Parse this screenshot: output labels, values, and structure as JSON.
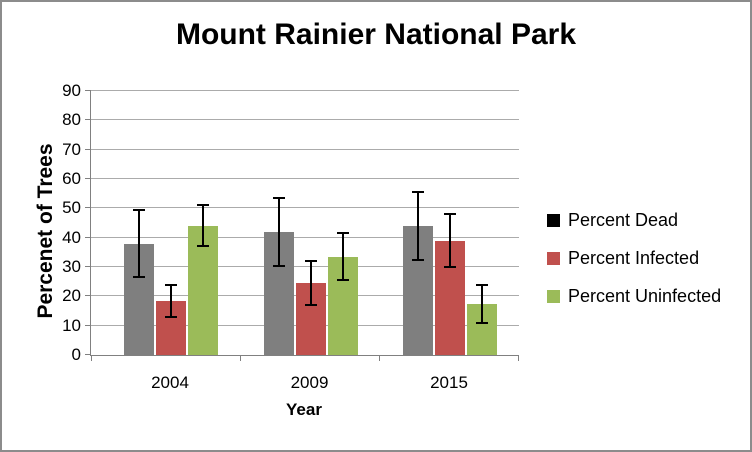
{
  "chart_data": {
    "type": "bar",
    "title": "Mount Rainier National Park",
    "xlabel": "Year",
    "ylabel": "Percenet of Trees",
    "categories": [
      "2004",
      "2009",
      "2015"
    ],
    "series": [
      {
        "name": "Percent Dead",
        "bar_color": "#7F7F7F",
        "legend_color": "#000000",
        "values": [
          38,
          42,
          44
        ],
        "error_plus_minus": [
          11.5,
          11.5,
          11.5
        ]
      },
      {
        "name": "Percent Infected",
        "bar_color": "#C0504D",
        "legend_color": "#C0504D",
        "values": [
          18.5,
          24.5,
          39
        ],
        "error_plus_minus": [
          5.5,
          7.5,
          9
        ]
      },
      {
        "name": "Percent Uninfected",
        "bar_color": "#9BBB59",
        "legend_color": "#9BBB59",
        "values": [
          44,
          33.5,
          17.5
        ],
        "error_plus_minus": [
          7,
          8,
          6.5
        ]
      }
    ],
    "ylim": [
      0,
      90
    ],
    "yticks": [
      0,
      10,
      20,
      30,
      40,
      50,
      60,
      70,
      80,
      90
    ],
    "grid": true,
    "error_bars": true,
    "legend_position": "right",
    "colors": {
      "gridline": "#ABABAB",
      "axis": "#808080",
      "error_bar": "#000000",
      "text": "#000000",
      "canvas_border": "#8C8C8C",
      "background": "#FFFFFF"
    }
  }
}
